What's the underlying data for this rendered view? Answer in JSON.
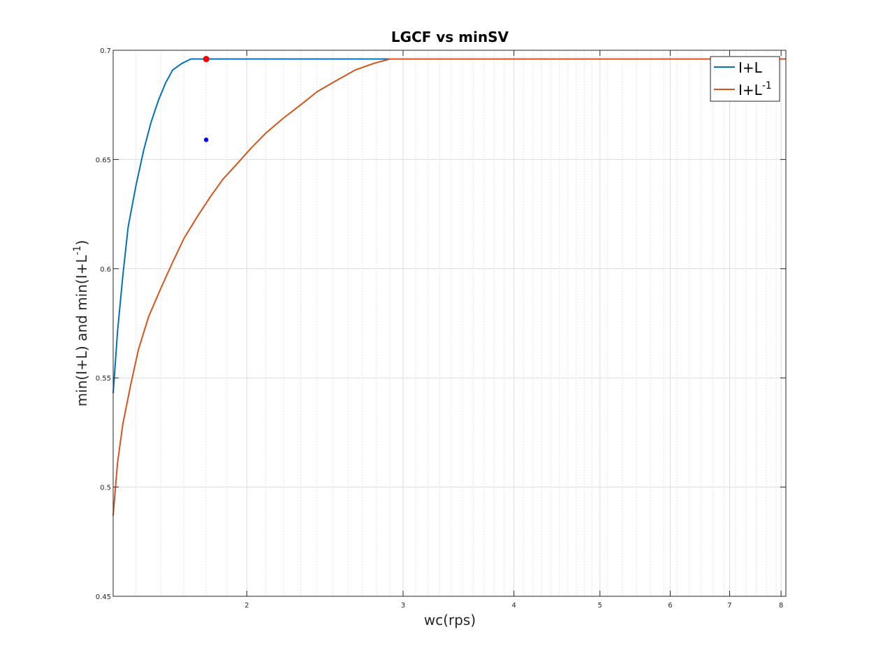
{
  "chart_data": {
    "type": "line",
    "title": "LGCF vs minSV",
    "xlabel": "wc(rps)",
    "ylabel_base": "min(I+L) and min(I+L",
    "ylabel_sup": "-1",
    "ylabel_tail": ")",
    "x_scale": "log",
    "xlim": [
      1.414,
      8.1
    ],
    "ylim": [
      0.45,
      0.7
    ],
    "x_ticks": [
      2,
      3,
      4,
      5,
      6,
      7,
      8
    ],
    "x_tick_labels": [
      "2",
      "3",
      "4",
      "5",
      "6",
      "7",
      "8"
    ],
    "y_ticks": [
      0.45,
      0.5,
      0.55,
      0.6,
      0.65,
      0.7
    ],
    "y_tick_labels": [
      "0.45",
      "0.5",
      "0.55",
      "0.6",
      "0.65",
      "0.7"
    ],
    "grid": true,
    "legend_position": "top-right",
    "series": [
      {
        "name": "I+L",
        "legend_base": "I+L",
        "legend_sup": "",
        "color": "#0072bd",
        "x": [
          1.414,
          1.43,
          1.45,
          1.47,
          1.5,
          1.53,
          1.56,
          1.59,
          1.62,
          1.65,
          1.69,
          1.73,
          1.77,
          1.82,
          1.87,
          1.92,
          2.0,
          3.0,
          8.1
        ],
        "y": [
          0.543,
          0.571,
          0.597,
          0.619,
          0.638,
          0.654,
          0.667,
          0.677,
          0.685,
          0.691,
          0.694,
          0.696,
          0.696,
          0.696,
          0.696,
          0.696,
          0.696,
          0.696,
          0.696
        ]
      },
      {
        "name": "I+L^-1",
        "legend_base": "I+L",
        "legend_sup": "-1",
        "color": "#d95319",
        "x": [
          1.414,
          1.43,
          1.45,
          1.48,
          1.51,
          1.55,
          1.6,
          1.65,
          1.7,
          1.76,
          1.82,
          1.88,
          1.95,
          2.02,
          2.1,
          2.2,
          2.3,
          2.4,
          2.52,
          2.65,
          2.78,
          2.9,
          3.0,
          4.0,
          6.0,
          8.1
        ],
        "y": [
          0.487,
          0.511,
          0.529,
          0.547,
          0.563,
          0.578,
          0.591,
          0.603,
          0.614,
          0.624,
          0.633,
          0.641,
          0.648,
          0.655,
          0.662,
          0.669,
          0.675,
          0.681,
          0.686,
          0.691,
          0.694,
          0.696,
          0.696,
          0.696,
          0.696,
          0.696
        ]
      }
    ],
    "markers": [
      {
        "x": 1.8,
        "y": 0.696,
        "color": "#ff0000",
        "size": "large"
      },
      {
        "x": 1.8,
        "y": 0.659,
        "color": "#0000ff",
        "size": "small"
      }
    ]
  }
}
